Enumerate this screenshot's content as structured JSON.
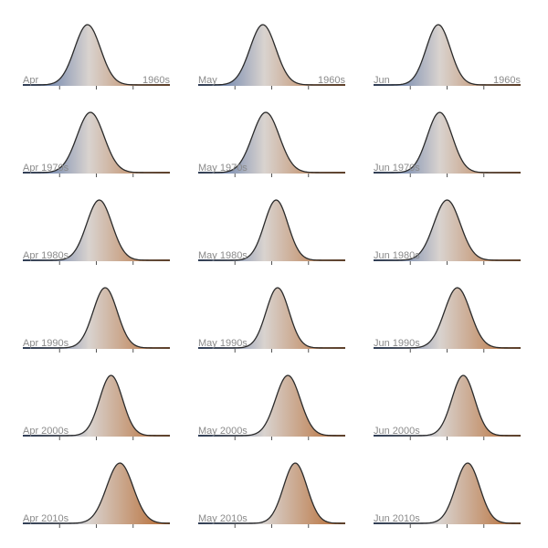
{
  "colors": {
    "cool": "#3b5f9e",
    "warm": "#b5662b",
    "mid": "#d9d3cf",
    "outline": "#2b2b2b"
  },
  "chart_data": {
    "type": "area",
    "chart_kind": "small-multiples ridgeline density plots",
    "columns": [
      "Apr",
      "May",
      "Jun"
    ],
    "decades": [
      "1960s",
      "1970s",
      "1980s",
      "1990s",
      "2000s",
      "2010s"
    ],
    "x_ticks_count": 3,
    "grid": false,
    "panels": [
      {
        "label": "Apr",
        "label_right": "1960s",
        "peak": 0.44,
        "width": 0.088
      },
      {
        "label": "May",
        "label_right": "1960s",
        "peak": 0.44,
        "width": 0.088
      },
      {
        "label": "Jun",
        "label_right": "1960s",
        "peak": 0.44,
        "width": 0.082
      },
      {
        "label": "Apr 1970s",
        "label_right": "",
        "peak": 0.46,
        "width": 0.092
      },
      {
        "label": "May 1970s",
        "label_right": "",
        "peak": 0.46,
        "width": 0.092
      },
      {
        "label": "Jun 1970s",
        "label_right": "",
        "peak": 0.45,
        "width": 0.085
      },
      {
        "label": "Apr 1980s",
        "label_right": "",
        "peak": 0.52,
        "width": 0.086
      },
      {
        "label": "May 1980s",
        "label_right": "",
        "peak": 0.53,
        "width": 0.08
      },
      {
        "label": "Jun 1980s",
        "label_right": "",
        "peak": 0.5,
        "width": 0.09
      },
      {
        "label": "Apr 1990s",
        "label_right": "",
        "peak": 0.56,
        "width": 0.082
      },
      {
        "label": "May 1990s",
        "label_right": "",
        "peak": 0.54,
        "width": 0.078
      },
      {
        "label": "Jun 1990s",
        "label_right": "",
        "peak": 0.57,
        "width": 0.088
      },
      {
        "label": "Apr 2000s",
        "label_right": "",
        "peak": 0.6,
        "width": 0.078
      },
      {
        "label": "May 2000s",
        "label_right": "",
        "peak": 0.61,
        "width": 0.084
      },
      {
        "label": "Jun 2000s",
        "label_right": "",
        "peak": 0.61,
        "width": 0.078
      },
      {
        "label": "Apr 2010s",
        "label_right": "",
        "peak": 0.66,
        "width": 0.09
      },
      {
        "label": "May 2010s",
        "label_right": "",
        "peak": 0.66,
        "width": 0.08
      },
      {
        "label": "Jun 2010s",
        "label_right": "",
        "peak": 0.64,
        "width": 0.082
      }
    ]
  }
}
